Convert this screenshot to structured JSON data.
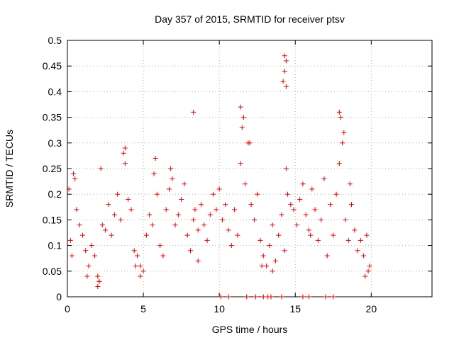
{
  "chart_data": {
    "type": "scatter",
    "title": "Day 357 of 2015, SRMTID for receiver ptsv",
    "xlabel": "GPS time / hours",
    "ylabel": "SRMTID / TECUs",
    "xlim": [
      0,
      24
    ],
    "ylim": [
      0,
      0.5
    ],
    "xticks": [
      "0",
      "5",
      "10",
      "15",
      "20"
    ],
    "yticks": [
      "0",
      "0.05",
      "0.1",
      "0.15",
      "0.2",
      "0.25",
      "0.3",
      "0.35",
      "0.4",
      "0.45",
      "0.5"
    ],
    "grid": true,
    "marker": "+",
    "color": "#e00000",
    "series": [
      {
        "name": "SRMTID",
        "x": [
          0.1,
          0.2,
          0.3,
          0.5,
          0.6,
          0.8,
          1.0,
          1.2,
          1.4,
          1.6,
          1.8,
          2.0,
          2.1,
          2.3,
          2.5,
          2.7,
          2.9,
          3.1,
          3.3,
          3.5,
          3.7,
          3.8,
          4.0,
          4.2,
          4.4,
          4.6,
          4.8,
          5.0,
          5.2,
          5.4,
          5.6,
          5.7,
          5.9,
          6.1,
          6.3,
          6.5,
          6.7,
          6.9,
          7.1,
          7.3,
          7.5,
          7.7,
          7.9,
          8.1,
          8.3,
          8.4,
          8.6,
          8.8,
          9.0,
          9.2,
          9.4,
          9.6,
          9.8,
          10.0,
          10.2,
          10.4,
          10.6,
          10.8,
          11.0,
          11.2,
          11.4,
          11.5,
          11.7,
          11.9,
          12.1,
          12.3,
          12.5,
          12.7,
          12.9,
          13.1,
          13.3,
          13.5,
          13.7,
          13.9,
          14.1,
          14.3,
          14.4,
          14.5,
          14.7,
          14.9,
          15.1,
          15.3,
          15.5,
          15.7,
          15.9,
          16.1,
          16.3,
          16.5,
          16.7,
          16.9,
          17.1,
          17.3,
          17.5,
          17.7,
          17.9,
          18.1,
          18.3,
          18.5,
          18.7,
          18.9,
          19.1,
          19.3,
          19.5,
          19.7,
          19.9,
          10.1,
          10.6,
          11.8,
          12.4,
          12.9,
          13.2,
          13.4,
          14.1,
          15.5,
          15.9,
          17.0,
          17.5,
          0.4,
          2.2,
          3.8,
          5.8,
          6.8,
          8.3,
          11.4,
          11.6,
          12.0,
          14.2,
          14.3,
          17.9,
          18.0,
          18.2,
          14.4,
          14.4,
          14.3,
          2.0,
          2.1,
          1.3,
          4.5,
          4.8,
          8.6,
          12.8,
          13.5,
          19.6,
          19.8,
          16.0,
          18.6
        ],
        "y": [
          0.21,
          0.11,
          0.08,
          0.23,
          0.17,
          0.14,
          0.12,
          0.09,
          0.06,
          0.1,
          0.08,
          0.04,
          0.03,
          0.14,
          0.13,
          0.18,
          0.12,
          0.16,
          0.2,
          0.15,
          0.28,
          0.26,
          0.19,
          0.17,
          0.09,
          0.08,
          0.06,
          0.05,
          0.12,
          0.16,
          0.14,
          0.24,
          0.2,
          0.1,
          0.08,
          0.17,
          0.21,
          0.23,
          0.14,
          0.16,
          0.19,
          0.22,
          0.12,
          0.09,
          0.15,
          0.17,
          0.13,
          0.18,
          0.14,
          0.11,
          0.16,
          0.2,
          0.17,
          0.21,
          0.15,
          0.18,
          0.13,
          0.1,
          0.17,
          0.12,
          0.26,
          0.33,
          0.22,
          0.3,
          0.18,
          0.15,
          0.2,
          0.11,
          0.08,
          0.06,
          0.1,
          0.14,
          0.07,
          0.12,
          0.16,
          0.09,
          0.25,
          0.2,
          0.18,
          0.17,
          0.14,
          0.19,
          0.22,
          0.16,
          0.13,
          0.21,
          0.17,
          0.11,
          0.15,
          0.23,
          0.08,
          0.18,
          0.12,
          0.2,
          0.26,
          0.3,
          0.15,
          0.11,
          0.18,
          0.13,
          0.09,
          0.11,
          0.08,
          0.12,
          0.06,
          0,
          0,
          0,
          0,
          0,
          0,
          0,
          0,
          0,
          0,
          0,
          0,
          0.24,
          0.25,
          0.29,
          0.27,
          0.25,
          0.36,
          0.37,
          0.35,
          0.3,
          0.42,
          0.47,
          0.36,
          0.35,
          0.32,
          0.46,
          0.41,
          0.44,
          0.02,
          0.03,
          0.04,
          0.06,
          0.04,
          0.07,
          0.06,
          0.05,
          0.04,
          0.05,
          0.12,
          0.22
        ]
      }
    ]
  }
}
